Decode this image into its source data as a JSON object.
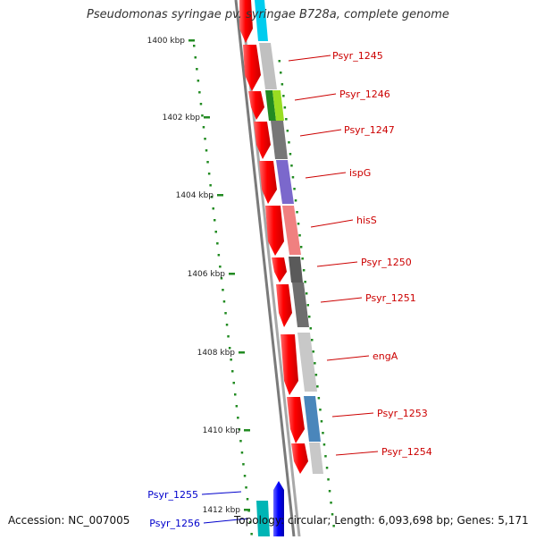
{
  "title": "Pseudomonas syringae pv. syringae B728a, complete genome",
  "footer": {
    "accession": "Accession: NC_007005",
    "summary": "Topology: circular; Length: 6,093,698 bp; Genes: 5,171"
  },
  "colors": {
    "background": "#ffffff",
    "backbone": "#888888",
    "gene_forward": "#ff0000",
    "gene_reverse_blue": "#0000ff",
    "label_red": "#cc0000",
    "label_blue": "#0000cc",
    "ticks": "#228b22",
    "tick_label": "#222222"
  },
  "kbp_ticks": [
    "1400 kbp",
    "1402 kbp",
    "1404 kbp",
    "1406 kbp",
    "1408 kbp",
    "1410 kbp",
    "1412 kbp"
  ],
  "gene_labels_right": [
    "Psyr_1245",
    "Psyr_1246",
    "Psyr_1247",
    "ispG",
    "hisS",
    "Psyr_1250",
    "Psyr_1251",
    "engA",
    "Psyr_1253",
    "Psyr_1254"
  ],
  "gene_labels_left": [
    "Psyr_1255",
    "Psyr_1256"
  ]
}
